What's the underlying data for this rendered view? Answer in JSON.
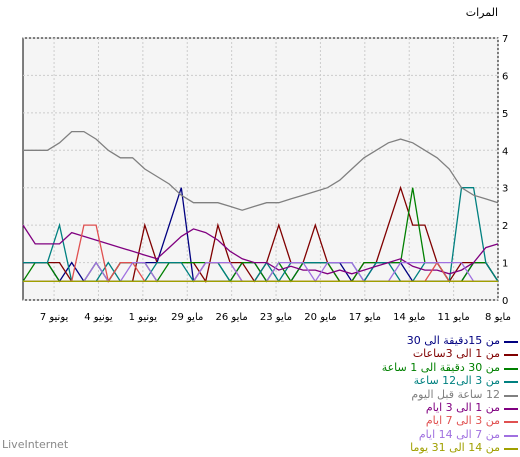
{
  "footer": "LiveInternet",
  "chart_data": {
    "type": "line",
    "ylabel": "المرات",
    "ylim": [
      0,
      7
    ],
    "yticks": [
      "0",
      "1",
      "2",
      "3",
      "4",
      "5",
      "6",
      "7"
    ],
    "xtick_labels": [
      "8 مايو",
      "11 مايو",
      "14 مايو",
      "17 مايو",
      "20 مايو",
      "23 مايو",
      "26 مايو",
      "29 مايو",
      "1 يونيو",
      "4 يونيو",
      "7 يونيو"
    ],
    "grid": true,
    "background": "#f5f5f5",
    "series": [
      {
        "name": "من 15دقيقة الى 30",
        "color": "#000080",
        "values": [
          1.0,
          1.0,
          1.0,
          0.5,
          1.0,
          0.5,
          0.5,
          0.5,
          1.0,
          1.0,
          1.0,
          1.0,
          2.0,
          3.0,
          0.5,
          0.5,
          0.5,
          0.5,
          1.0,
          1.0,
          0.5,
          0.5,
          0.5,
          1.0,
          1.0,
          1.0,
          1.0,
          0.5,
          0.5,
          1.0,
          1.0,
          1.0,
          0.5,
          0.5,
          0.5,
          0.5,
          0.5,
          1.0,
          1.0,
          0.5
        ]
      },
      {
        "name": "من 1 الى 3ساعات",
        "color": "#800000",
        "values": [
          1.0,
          1.0,
          1.0,
          1.0,
          0.5,
          0.5,
          0.5,
          0.5,
          0.5,
          0.5,
          2.0,
          1.0,
          1.0,
          1.0,
          1.0,
          0.5,
          2.0,
          1.0,
          1.0,
          0.5,
          1.0,
          2.0,
          1.0,
          1.0,
          2.0,
          1.0,
          0.5,
          0.5,
          1.0,
          1.0,
          2.0,
          3.0,
          2.0,
          2.0,
          1.0,
          0.5,
          1.0,
          1.0,
          1.0,
          0.5
        ]
      },
      {
        "name": "من 30 دقيقة الى 1 ساعة",
        "color": "#008000",
        "values": [
          0.5,
          1.0,
          1.0,
          0.5,
          0.5,
          0.5,
          1.0,
          0.5,
          1.0,
          1.0,
          1.0,
          0.5,
          1.0,
          1.0,
          1.0,
          1.0,
          1.0,
          0.5,
          1.0,
          1.0,
          0.5,
          1.0,
          0.5,
          1.0,
          1.0,
          1.0,
          0.5,
          0.5,
          1.0,
          1.0,
          1.0,
          1.0,
          3.0,
          1.0,
          1.0,
          0.5,
          0.5,
          1.0,
          1.0,
          0.5
        ]
      },
      {
        "name": "من 3 الى12 ساعة",
        "color": "#008080",
        "values": [
          1.0,
          1.0,
          1.0,
          2.0,
          0.5,
          0.5,
          0.5,
          1.0,
          0.5,
          0.5,
          0.5,
          1.0,
          1.0,
          1.0,
          0.5,
          1.0,
          1.0,
          0.5,
          0.5,
          0.5,
          1.0,
          0.5,
          1.0,
          1.0,
          1.0,
          1.0,
          1.0,
          1.0,
          0.5,
          1.0,
          1.0,
          0.5,
          0.5,
          1.0,
          1.0,
          0.5,
          3.0,
          3.0,
          1.0,
          0.5
        ]
      },
      {
        "name": "12 ساعة قبل اليوم",
        "color": "#808080",
        "values": [
          4.0,
          4.0,
          4.0,
          4.2,
          4.5,
          4.5,
          4.3,
          4.0,
          3.8,
          3.8,
          3.5,
          3.3,
          3.1,
          2.8,
          2.6,
          2.6,
          2.6,
          2.5,
          2.4,
          2.5,
          2.6,
          2.6,
          2.7,
          2.8,
          2.9,
          3.0,
          3.2,
          3.5,
          3.8,
          4.0,
          4.2,
          4.3,
          4.2,
          4.0,
          3.8,
          3.5,
          3.0,
          2.8,
          2.7,
          2.6
        ]
      },
      {
        "name": "من 1 الى 3 ايام",
        "color": "#800080",
        "values": [
          2.0,
          1.5,
          1.5,
          1.5,
          1.8,
          1.7,
          1.6,
          1.5,
          1.4,
          1.3,
          1.2,
          1.1,
          1.4,
          1.7,
          1.9,
          1.8,
          1.6,
          1.3,
          1.1,
          1.0,
          1.0,
          0.8,
          0.9,
          0.8,
          0.8,
          0.7,
          0.8,
          0.7,
          0.8,
          0.9,
          1.0,
          1.1,
          0.9,
          0.8,
          0.8,
          0.7,
          0.8,
          1.0,
          1.4,
          1.5
        ]
      },
      {
        "name": "من 3 الى 7 ايام",
        "color": "#e05050",
        "values": [
          0.5,
          0.5,
          0.5,
          0.5,
          0.5,
          2.0,
          2.0,
          0.5,
          1.0,
          1.0,
          0.5,
          0.5,
          0.5,
          0.5,
          0.5,
          1.0,
          1.0,
          1.0,
          0.5,
          0.5,
          0.5,
          0.5,
          0.5,
          0.5,
          0.5,
          0.5,
          0.5,
          0.5,
          0.5,
          0.5,
          0.5,
          0.5,
          0.5,
          0.5,
          1.0,
          0.5,
          0.5,
          0.5,
          0.5,
          0.5
        ]
      },
      {
        "name": "من 7 الى 14 ايام",
        "color": "#a070e0",
        "values": [
          0.5,
          0.5,
          0.5,
          0.5,
          0.5,
          0.5,
          1.0,
          0.5,
          0.5,
          1.0,
          1.0,
          0.5,
          0.5,
          0.5,
          0.5,
          1.0,
          1.0,
          1.0,
          0.5,
          0.5,
          0.5,
          1.0,
          1.0,
          1.0,
          0.5,
          1.0,
          1.0,
          1.0,
          0.5,
          0.5,
          0.5,
          1.0,
          1.0,
          1.0,
          1.0,
          1.0,
          1.0,
          0.5,
          0.5,
          0.5
        ]
      },
      {
        "name": "من 14 الى 31 يوما",
        "color": "#a0a000",
        "values": [
          0.5,
          0.5,
          0.5,
          0.5,
          0.5,
          0.5,
          0.5,
          0.5,
          0.5,
          0.5,
          0.5,
          0.5,
          0.5,
          0.5,
          0.5,
          0.5,
          0.5,
          0.5,
          0.5,
          0.5,
          0.5,
          0.5,
          0.5,
          0.5,
          0.5,
          0.5,
          0.5,
          0.5,
          0.5,
          0.5,
          0.5,
          0.5,
          0.5,
          0.5,
          0.5,
          0.5,
          0.5,
          0.5,
          0.5,
          0.5
        ]
      }
    ]
  }
}
